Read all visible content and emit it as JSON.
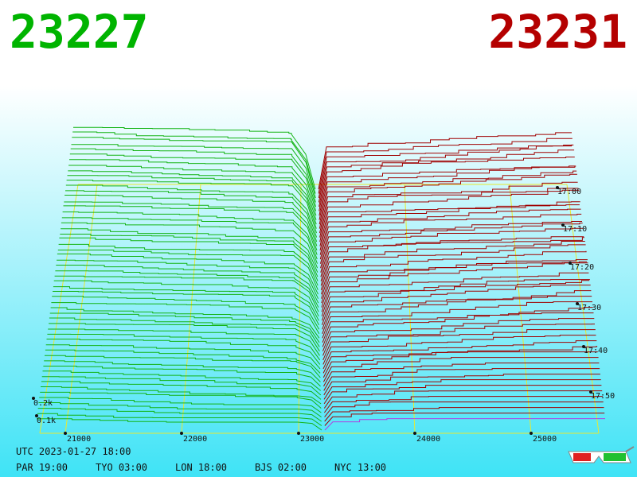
{
  "header": {
    "bid": "23227",
    "ask": "23231"
  },
  "axis": {
    "price_ticks": [
      "21000",
      "22000",
      "23000",
      "24000",
      "25000"
    ],
    "time_ticks": [
      "17:00",
      "17:10",
      "17:20",
      "17:30",
      "17:40",
      "17:50"
    ],
    "volume_ticks": [
      "0.2k",
      "0.1k"
    ]
  },
  "footer": {
    "utc": "UTC 2023-01-27 18:00",
    "clocks": [
      "PAR 19:00",
      "TYO 03:00",
      "LON 18:00",
      "BJS 02:00",
      "NYC 13:00"
    ]
  }
}
